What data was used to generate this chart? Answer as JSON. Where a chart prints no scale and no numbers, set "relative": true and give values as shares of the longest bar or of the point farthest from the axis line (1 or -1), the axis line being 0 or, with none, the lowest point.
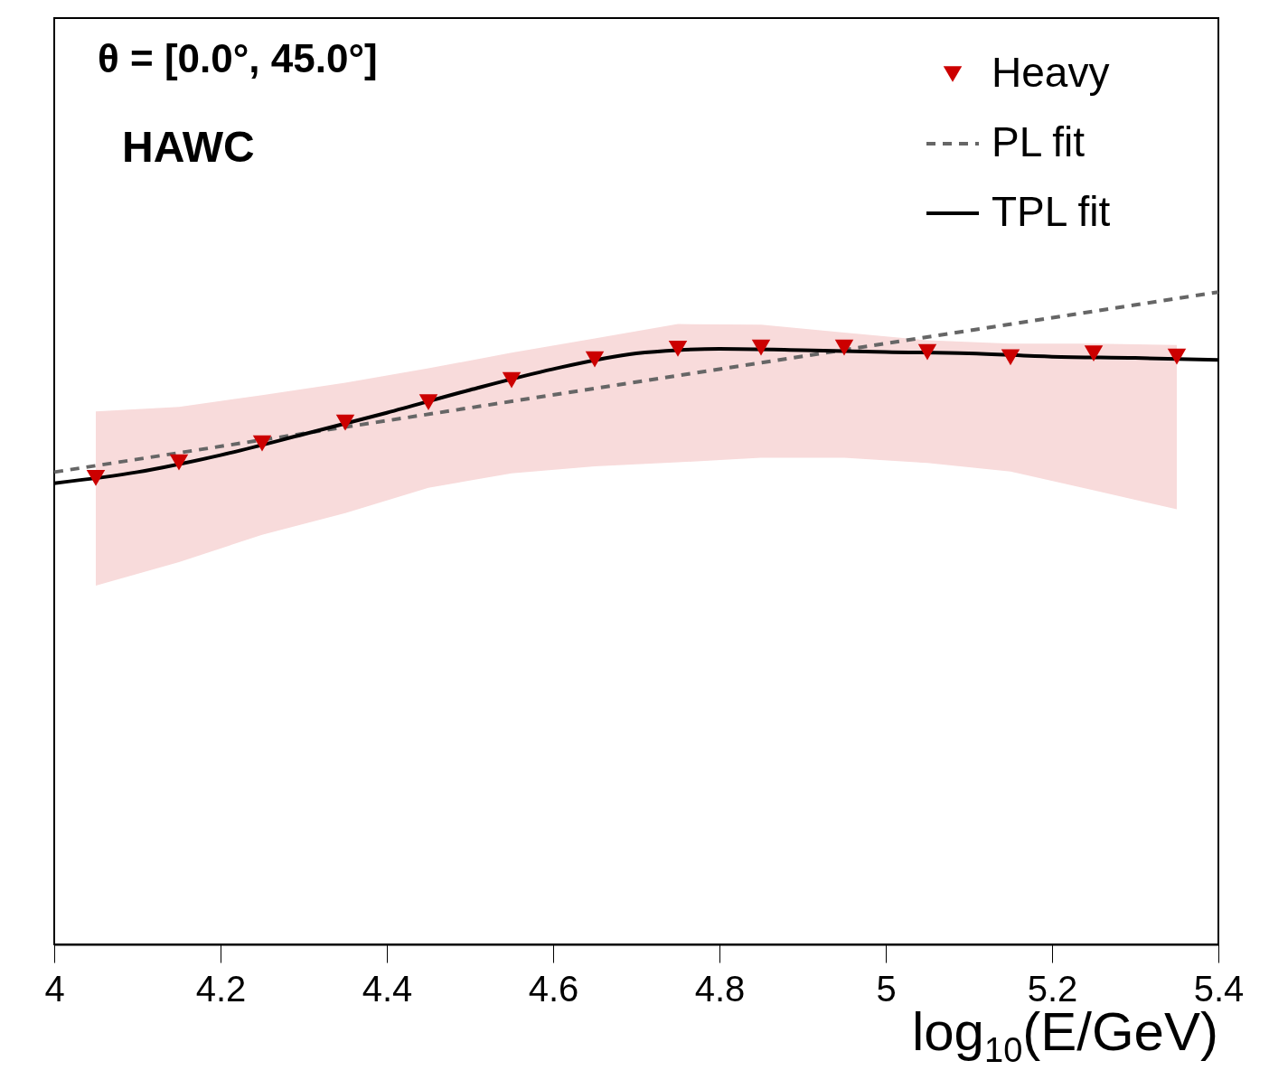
{
  "chart_data": {
    "type": "scatter",
    "xlabel": "log$_{10}$(E/GeV)",
    "relative": true,
    "legend": "top right",
    "annotations": [
      "θ = [0.0°, 45.0°]",
      "HAWC"
    ],
    "xlim": [
      4,
      5.4
    ],
    "xticks": [
      4,
      4.2,
      4.4,
      4.6,
      4.8,
      5,
      5.2,
      5.4
    ],
    "series": [
      {
        "name": "Heavy",
        "marker": "triangle",
        "color": "#cc0000",
        "x": [
          4.05,
          4.15,
          4.25,
          4.35,
          4.45,
          4.55,
          4.65,
          4.75,
          4.85,
          4.95,
          5.05,
          5.15,
          5.25,
          5.35
        ],
        "values": [
          0.715,
          0.739,
          0.768,
          0.8,
          0.831,
          0.865,
          0.897,
          0.913,
          0.915,
          0.915,
          0.908,
          0.9,
          0.906,
          0.901
        ],
        "lower": [
          0.55,
          0.586,
          0.628,
          0.661,
          0.7,
          0.722,
          0.733,
          0.739,
          0.746,
          0.746,
          0.738,
          0.725,
          0.696,
          0.667
        ],
        "upper": [
          0.817,
          0.824,
          0.842,
          0.861,
          0.883,
          0.907,
          0.929,
          0.951,
          0.95,
          0.938,
          0.926,
          0.921,
          0.921,
          0.919
        ]
      },
      {
        "name": "PL fit",
        "type": "line",
        "line_style": "dashed",
        "color": "#666666",
        "x": [
          4.0,
          5.4
        ],
        "values": [
          0.724,
          1.0
        ]
      },
      {
        "name": "TPL fit",
        "type": "line",
        "line_style": "solid",
        "color": "#000000",
        "x": [
          4.0,
          4.1,
          4.2,
          4.3,
          4.4,
          4.5,
          4.6,
          4.7,
          4.75,
          4.8,
          4.9,
          5.0,
          5.1,
          5.2,
          5.3,
          5.4
        ],
        "values": [
          0.707,
          0.724,
          0.75,
          0.782,
          0.815,
          0.85,
          0.882,
          0.906,
          0.911,
          0.913,
          0.911,
          0.908,
          0.906,
          0.901,
          0.899,
          0.896
        ]
      }
    ]
  }
}
